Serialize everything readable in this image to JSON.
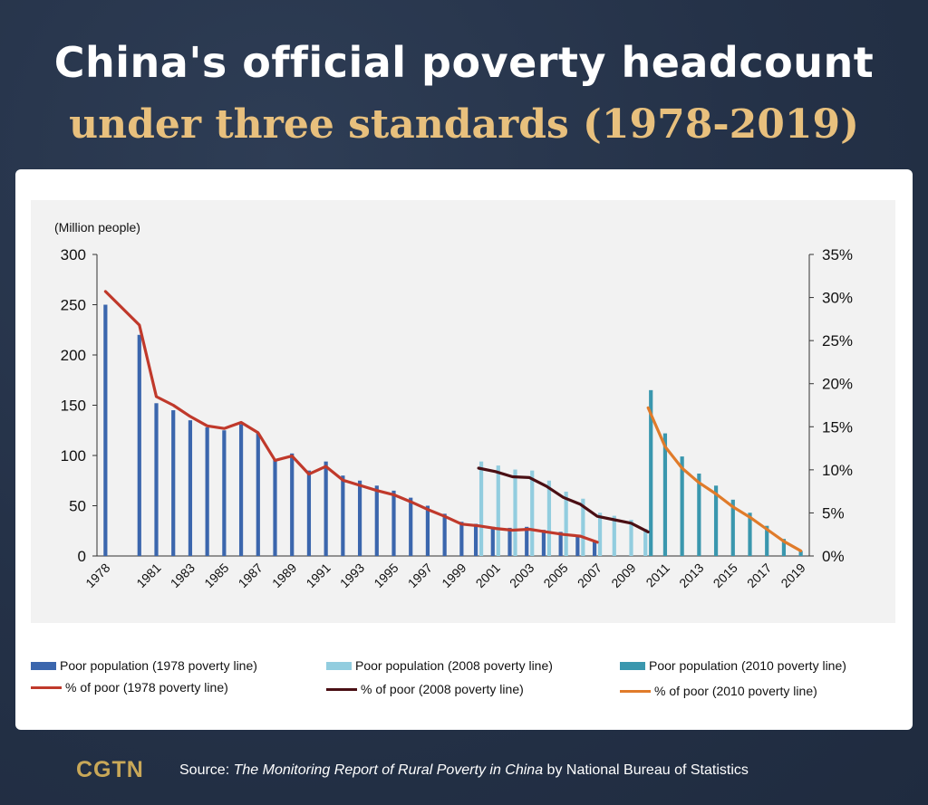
{
  "title": {
    "line1": "China's official poverty headcount",
    "line2": "under three standards (1978-2019)"
  },
  "footer": {
    "logo": "CGTN",
    "source_prefix": "Source: ",
    "source_title": "The Monitoring Report of Rural Poverty in China",
    "source_suffix": " by National Bureau of Statistics"
  },
  "colors": {
    "bar_1978": "#3b66ad",
    "bar_2008": "#92cddf",
    "bar_2010": "#3a97ae",
    "line_1978": "#c0392b",
    "line_2008": "#4a0f14",
    "line_2010": "#e07b2a"
  },
  "chart_data": {
    "type": "bar",
    "ylabel": "(Million people)",
    "ylim": [
      0,
      300
    ],
    "y_ticks": [
      "0",
      "50",
      "100",
      "150",
      "200",
      "250",
      "300"
    ],
    "y2lim": [
      0,
      35
    ],
    "y2_ticks": [
      "0%",
      "5%",
      "10%",
      "15%",
      "20%",
      "25%",
      "30%",
      "35%"
    ],
    "x_labels": [
      "1978",
      "1981",
      "1983",
      "1985",
      "1987",
      "1989",
      "1991",
      "1993",
      "1995",
      "1997",
      "1999",
      "2001",
      "2003",
      "2005",
      "2007",
      "2009",
      "2011",
      "2013",
      "2015",
      "2017",
      "2019"
    ],
    "legend_position": "bottom",
    "series": [
      {
        "name": "Poor population (1978 poverty line)",
        "kind": "bar",
        "x": [
          "1978",
          "1980",
          "1981",
          "1982",
          "1983",
          "1984",
          "1985",
          "1986",
          "1987",
          "1988",
          "1989",
          "1990",
          "1991",
          "1992",
          "1993",
          "1994",
          "1995",
          "1996",
          "1997",
          "1998",
          "1999",
          "2000",
          "2001",
          "2002",
          "2003",
          "2004",
          "2005",
          "2006",
          "2007"
        ],
        "values": [
          250,
          220,
          152,
          145,
          135,
          128,
          125,
          131,
          122,
          96,
          102,
          85,
          94,
          80,
          75,
          70,
          65,
          58,
          50,
          42,
          34,
          32,
          29,
          28,
          29,
          26,
          24,
          21,
          15
        ]
      },
      {
        "name": "Poor population (2008 poverty line)",
        "kind": "bar",
        "x": [
          "2000",
          "2001",
          "2002",
          "2003",
          "2004",
          "2005",
          "2006",
          "2007",
          "2008",
          "2009",
          "2010"
        ],
        "values": [
          94,
          90,
          86,
          85,
          75,
          64,
          57,
          43,
          40,
          36,
          27
        ]
      },
      {
        "name": "Poor population (2010 poverty line)",
        "kind": "bar",
        "x": [
          "2010",
          "2011",
          "2012",
          "2013",
          "2014",
          "2015",
          "2016",
          "2017",
          "2018",
          "2019"
        ],
        "values": [
          165,
          122,
          99,
          82,
          70,
          56,
          43,
          30,
          17,
          5
        ]
      },
      {
        "name": "% of poor (1978 poverty line)",
        "kind": "line",
        "x": [
          "1978",
          "1980",
          "1981",
          "1982",
          "1983",
          "1984",
          "1985",
          "1986",
          "1987",
          "1988",
          "1989",
          "1990",
          "1991",
          "1992",
          "1993",
          "1994",
          "1995",
          "1996",
          "1997",
          "1998",
          "1999",
          "2000",
          "2001",
          "2002",
          "2003",
          "2004",
          "2005",
          "2006",
          "2007"
        ],
        "values": [
          30.7,
          26.8,
          18.5,
          17.5,
          16.2,
          15.1,
          14.8,
          15.5,
          14.3,
          11.1,
          11.6,
          9.5,
          10.4,
          8.8,
          8.2,
          7.6,
          7.1,
          6.3,
          5.4,
          4.6,
          3.7,
          3.5,
          3.2,
          3.0,
          3.1,
          2.8,
          2.5,
          2.3,
          1.6
        ]
      },
      {
        "name": "% of poor (2008 poverty line)",
        "kind": "line",
        "x": [
          "2000",
          "2001",
          "2002",
          "2003",
          "2004",
          "2005",
          "2006",
          "2007",
          "2008",
          "2009",
          "2010"
        ],
        "values": [
          10.2,
          9.8,
          9.2,
          9.1,
          8.1,
          6.8,
          6.0,
          4.6,
          4.2,
          3.8,
          2.8
        ]
      },
      {
        "name": "% of poor (2010 poverty line)",
        "kind": "line",
        "x": [
          "2010",
          "2011",
          "2012",
          "2013",
          "2014",
          "2015",
          "2016",
          "2017",
          "2018",
          "2019"
        ],
        "values": [
          17.2,
          12.7,
          10.2,
          8.5,
          7.2,
          5.7,
          4.5,
          3.1,
          1.7,
          0.6
        ]
      }
    ]
  }
}
